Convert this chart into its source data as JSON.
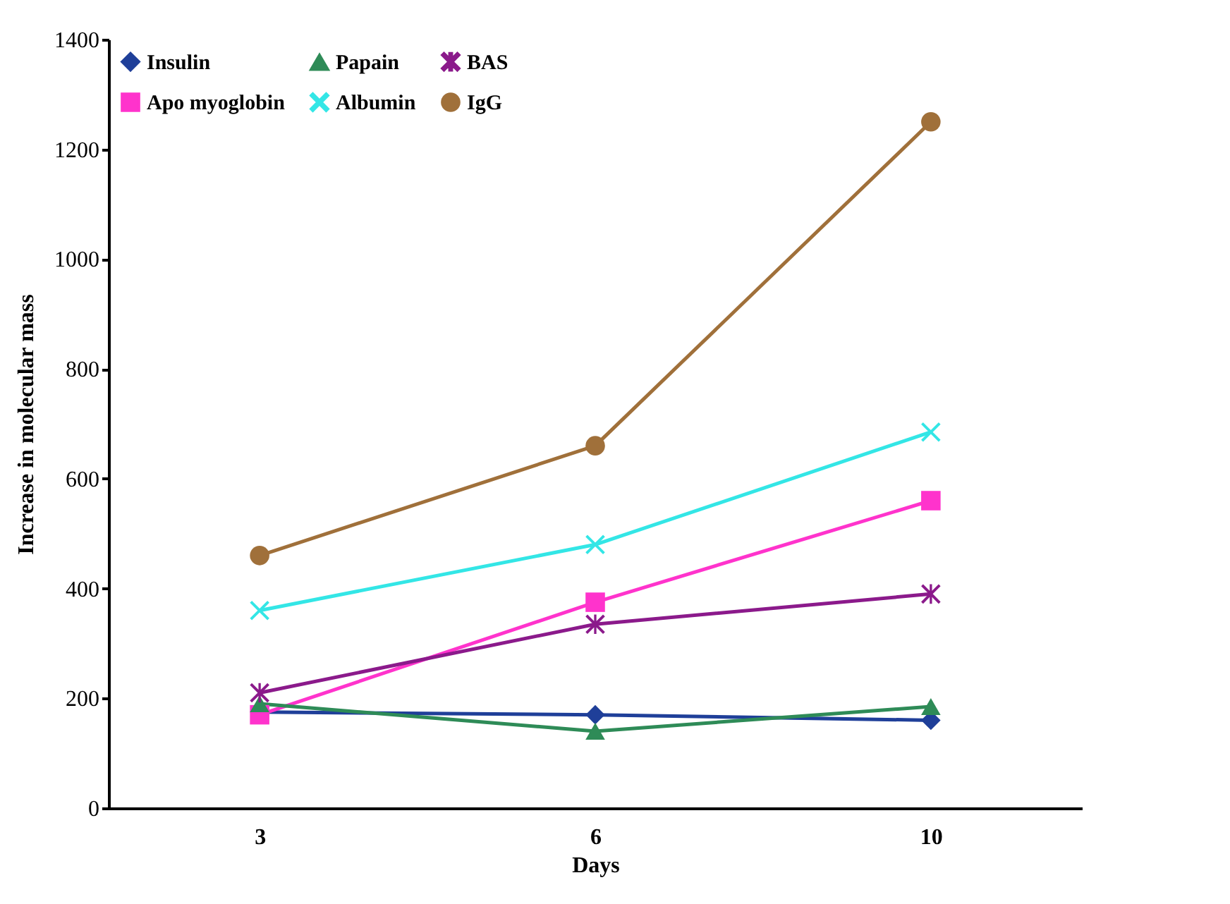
{
  "chart_data": {
    "type": "line",
    "xlabel": "Days",
    "ylabel": "Increase in molecular mass",
    "categories": [
      "3",
      "6",
      "10"
    ],
    "series": [
      {
        "name": "Insulin",
        "color": "#1f3f99",
        "marker": "diamond",
        "values": [
          175,
          170,
          160
        ]
      },
      {
        "name": "Apo myoglobin",
        "color": "#ff33cc",
        "marker": "square",
        "values": [
          170,
          375,
          560
        ]
      },
      {
        "name": "Papain",
        "color": "#2e8b57",
        "marker": "triangle",
        "values": [
          190,
          140,
          185
        ]
      },
      {
        "name": "Albumin",
        "color": "#33e6e6",
        "marker": "cross",
        "values": [
          360,
          480,
          685
        ]
      },
      {
        "name": "BAS",
        "color": "#8b1a8b",
        "marker": "star",
        "values": [
          210,
          335,
          390
        ]
      },
      {
        "name": "IgG",
        "color": "#a0703a",
        "marker": "circle",
        "values": [
          460,
          660,
          1250
        ]
      }
    ],
    "ylim": [
      0,
      1400
    ],
    "yticks": [
      0,
      200,
      400,
      600,
      800,
      1000,
      1200,
      1400
    ],
    "grid": false,
    "legend": "top left"
  }
}
